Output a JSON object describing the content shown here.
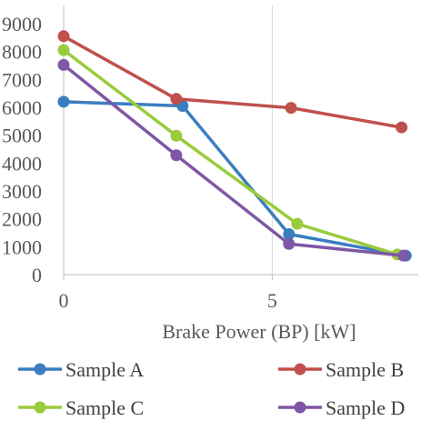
{
  "chart_data": {
    "type": "line",
    "title": "",
    "xlabel": "Brake Power (BP) [kW]",
    "ylabel": "",
    "xlim": [
      0,
      8.5
    ],
    "ylim": [
      0,
      9000
    ],
    "x_ticks": [
      0,
      5
    ],
    "y_ticks": [
      0,
      1000,
      2000,
      3000,
      4000,
      5000,
      6000,
      7000,
      8000,
      9000
    ],
    "grid": "vertical",
    "legend_position": "bottom",
    "series": [
      {
        "name": "Sample A",
        "color": "#3a7ec0",
        "points": [
          [
            0,
            6200
          ],
          [
            2.85,
            6050
          ],
          [
            5.4,
            1450
          ],
          [
            8.2,
            680
          ]
        ]
      },
      {
        "name": "Sample B",
        "color": "#c0504d",
        "points": [
          [
            0,
            8550
          ],
          [
            2.7,
            6300
          ],
          [
            5.45,
            5980
          ],
          [
            8.1,
            5280
          ]
        ]
      },
      {
        "name": "Sample C",
        "color": "#9acb3c",
        "points": [
          [
            0,
            8050
          ],
          [
            2.7,
            4980
          ],
          [
            5.6,
            1820
          ],
          [
            8.0,
            720
          ]
        ]
      },
      {
        "name": "Sample D",
        "color": "#7e57a6",
        "points": [
          [
            0,
            7520
          ],
          [
            2.7,
            4280
          ],
          [
            5.4,
            1100
          ],
          [
            8.15,
            680
          ]
        ]
      }
    ]
  }
}
